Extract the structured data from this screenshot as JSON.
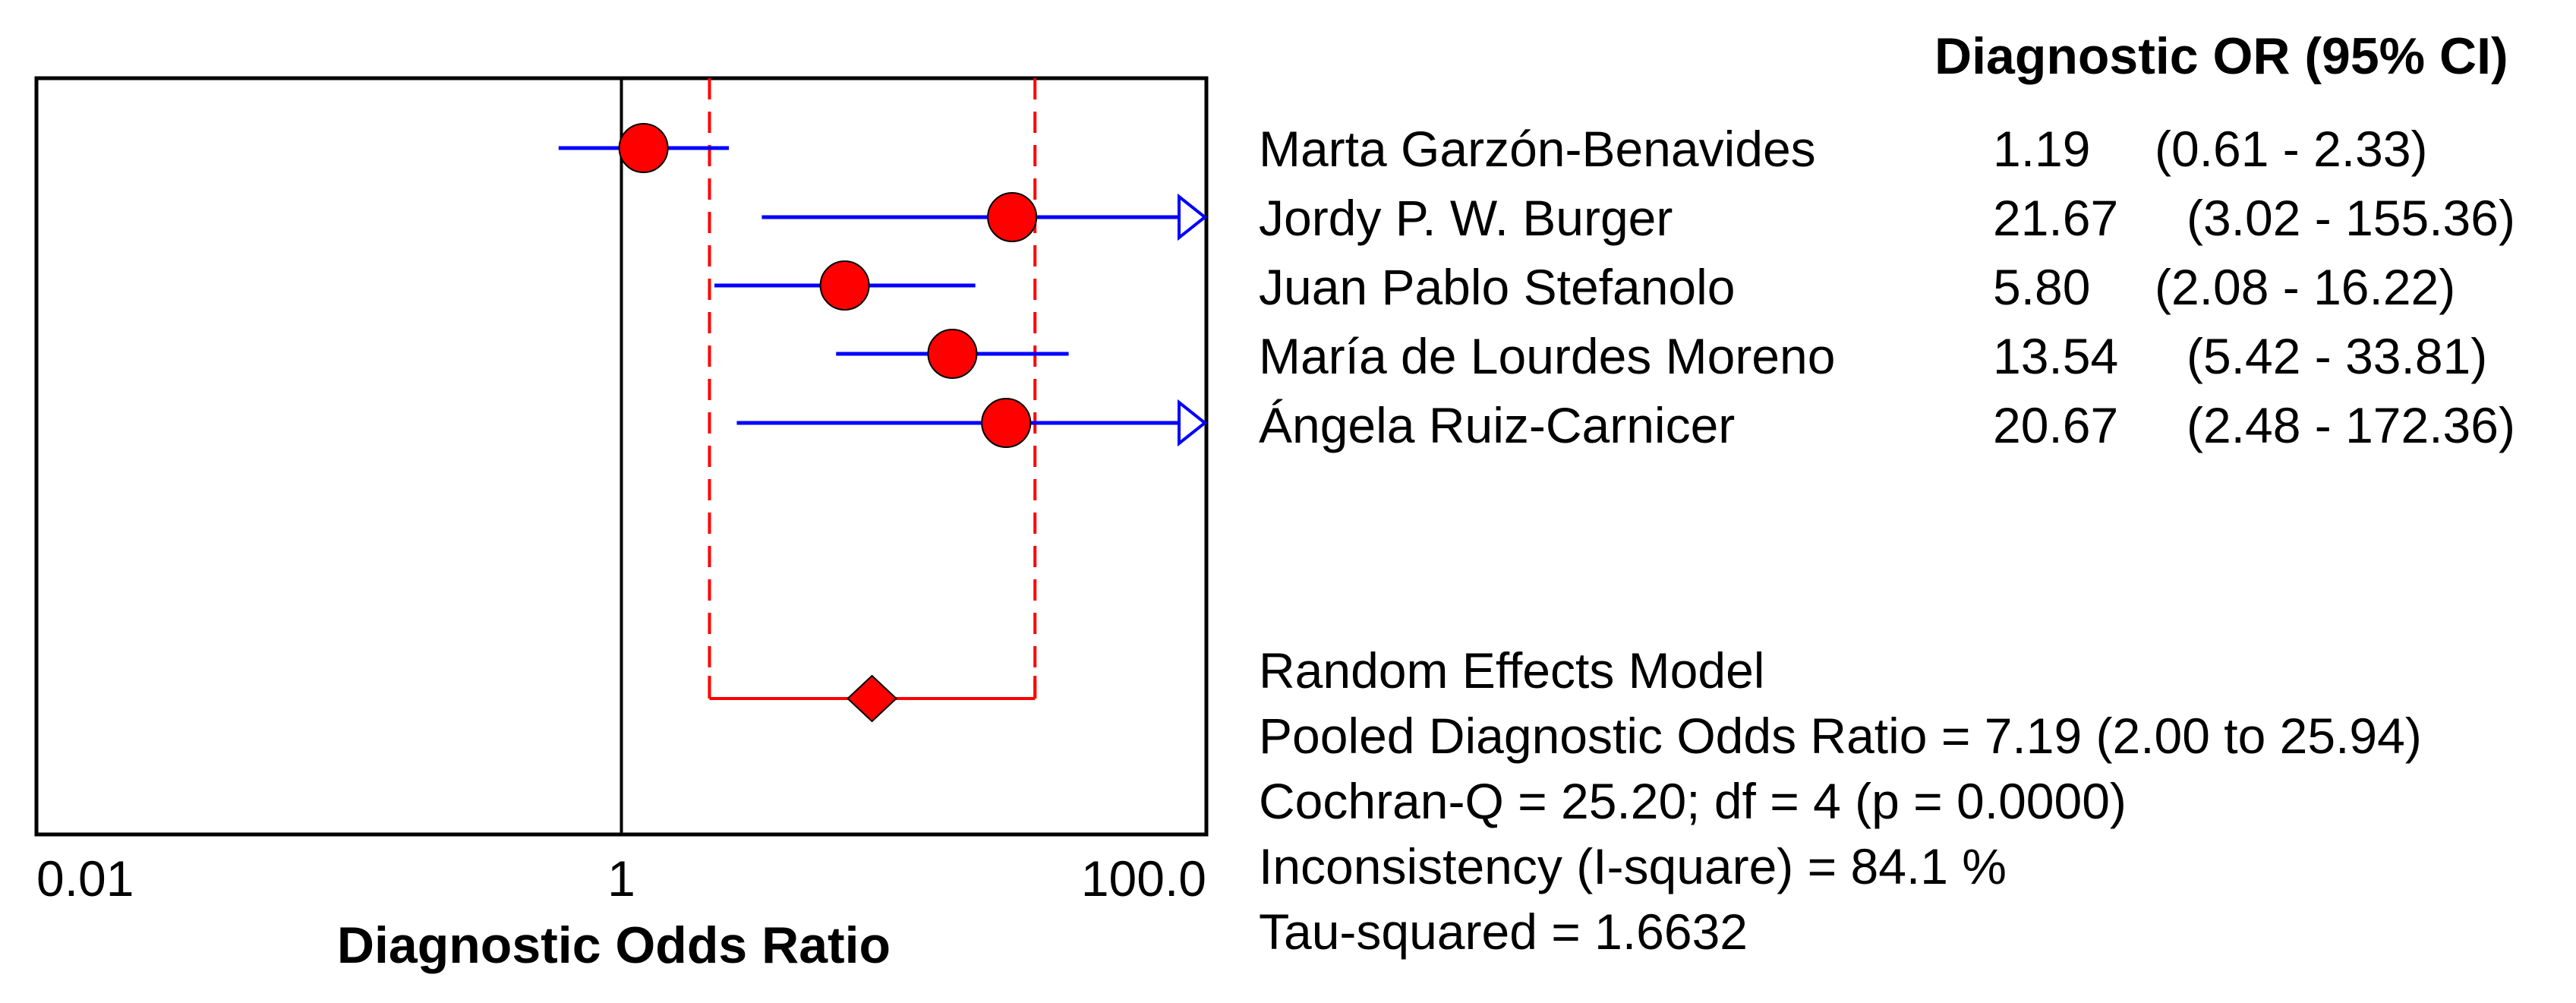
{
  "chart_data": {
    "type": "forest",
    "title": "",
    "xlabel": "Diagnostic Odds Ratio",
    "x_scale": "log",
    "xlim": [
      0.01,
      100.0
    ],
    "x_ticks": [
      {
        "value": 0.01,
        "label": "0.01"
      },
      {
        "value": 1,
        "label": "1"
      },
      {
        "value": 100.0,
        "label": "100.0"
      }
    ],
    "reference_line": 1,
    "column_header": "Diagnostic OR (95% CI)",
    "studies": [
      {
        "name": "Marta Garzón-Benavides",
        "or": 1.19,
        "lower": 0.61,
        "upper": 2.33,
        "or_label": "1.19",
        "ci_label": "(0.61 - 2.33)"
      },
      {
        "name": "Jordy P. W. Burger",
        "or": 21.67,
        "lower": 3.02,
        "upper": 155.36,
        "or_label": "21.67",
        "ci_label": "(3.02 - 155.36)"
      },
      {
        "name": "Juan Pablo Stefanolo",
        "or": 5.8,
        "lower": 2.08,
        "upper": 16.22,
        "or_label": "5.80",
        "ci_label": "(2.08 - 16.22)"
      },
      {
        "name": "María de Lourdes Moreno",
        "or": 13.54,
        "lower": 5.42,
        "upper": 33.81,
        "or_label": "13.54",
        "ci_label": "(5.42 - 33.81)"
      },
      {
        "name": "Ángela Ruiz-Carnicer",
        "or": 20.67,
        "lower": 2.48,
        "upper": 172.36,
        "or_label": "20.67",
        "ci_label": "(2.48 - 172.36)"
      }
    ],
    "pooled": {
      "or": 7.19,
      "lower": 2.0,
      "upper": 25.94
    },
    "summary": {
      "model": "Random Effects Model",
      "pooled_text": "Pooled Diagnostic Odds Ratio = 7.19 (2.00 to 25.94)",
      "cochran_text": "Cochran-Q = 25.20; df =  4 (p = 0.0000)",
      "inconsistency_text": "Inconsistency (I-square) = 84.1 %",
      "tau_text": "Tau-squared = 1.6632"
    },
    "colors": {
      "study_marker": "#ff0000",
      "ci_line": "#0000ff",
      "pooled": "#ff0000",
      "frame": "#000000"
    }
  }
}
